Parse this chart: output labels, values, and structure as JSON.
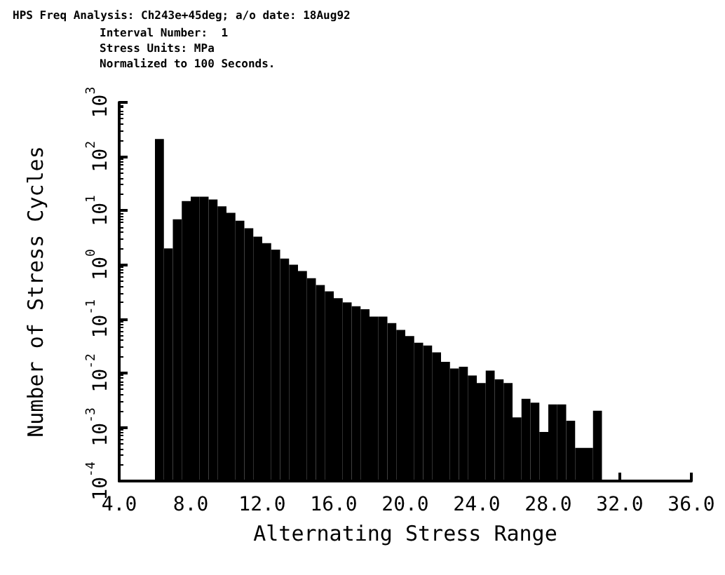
{
  "chart_data": {
    "type": "histogram",
    "title": "HPS Freq Analysis: Ch243e+45deg; a/o date: 18Aug92",
    "subtitle": "Interval Number:  1\nStress Units: MPa\nNormalized to 100 Seconds.",
    "xlabel": "Alternating Stress Range",
    "ylabel": "Number of Stress Cycles",
    "color": "#000000",
    "log": "y",
    "bins": [
      6.0,
      6.5,
      7.0,
      7.5,
      8.0,
      8.5,
      9.0,
      9.5,
      10.0,
      10.5,
      11.0,
      11.5,
      12.0,
      12.5,
      13.0,
      13.5,
      14.0,
      14.5,
      15.0,
      15.5,
      16.0,
      16.5,
      17.0,
      17.5,
      18.0,
      18.5,
      19.0,
      19.5,
      20.0,
      20.5,
      21.0,
      21.5,
      22.0,
      22.5,
      23.0,
      23.5,
      24.0,
      24.5,
      25.0,
      25.5,
      26.0,
      26.5,
      27.0,
      27.5,
      28.0,
      28.5,
      29.0,
      29.5,
      30.0,
      30.5,
      31.0
    ],
    "values": [
      210,
      2.0,
      6.9,
      15,
      18,
      18,
      16,
      12,
      9.1,
      6.5,
      4.7,
      3.3,
      2.5,
      1.9,
      1.3,
      1.0,
      0.76,
      0.56,
      0.42,
      0.32,
      0.24,
      0.2,
      0.17,
      0.15,
      0.11,
      0.11,
      0.083,
      0.062,
      0.048,
      0.036,
      0.032,
      0.024,
      0.016,
      0.012,
      0.013,
      0.0089,
      0.0065,
      0.011,
      0.0076,
      0.0065,
      0.0015,
      0.0033,
      0.0028,
      0.00081,
      0.0026,
      0.0026,
      0.0013,
      0.00041,
      0.00041,
      0.002
    ],
    "xlim": [
      4,
      36
    ],
    "xticks": [
      {
        "value": 4,
        "label": "4.0"
      },
      {
        "value": 8,
        "label": "8.0"
      },
      {
        "value": 12,
        "label": "12.0"
      },
      {
        "value": 16,
        "label": "16.0"
      },
      {
        "value": 20,
        "label": "20.0"
      },
      {
        "value": 24,
        "label": "24.0"
      },
      {
        "value": 28,
        "label": "28.0"
      },
      {
        "value": 32,
        "label": "32.0"
      },
      {
        "value": 36,
        "label": "36.0"
      }
    ],
    "ylim": [
      0.0001,
      1000
    ],
    "yticks": [
      {
        "value": 0.0001,
        "label": "10$^{-4}$"
      },
      {
        "value": 0.001,
        "label": "10$^{-3}$"
      },
      {
        "value": 0.01,
        "label": "10$^{-2}$"
      },
      {
        "value": 0.1,
        "label": "10$^{-1}$"
      },
      {
        "value": 1,
        "label": "10$^{0}$"
      },
      {
        "value": 10,
        "label": "10$^{1}$"
      },
      {
        "value": 100,
        "label": "10$^{2}$"
      },
      {
        "value": 1000,
        "label": "10$^{3}$"
      }
    ]
  }
}
